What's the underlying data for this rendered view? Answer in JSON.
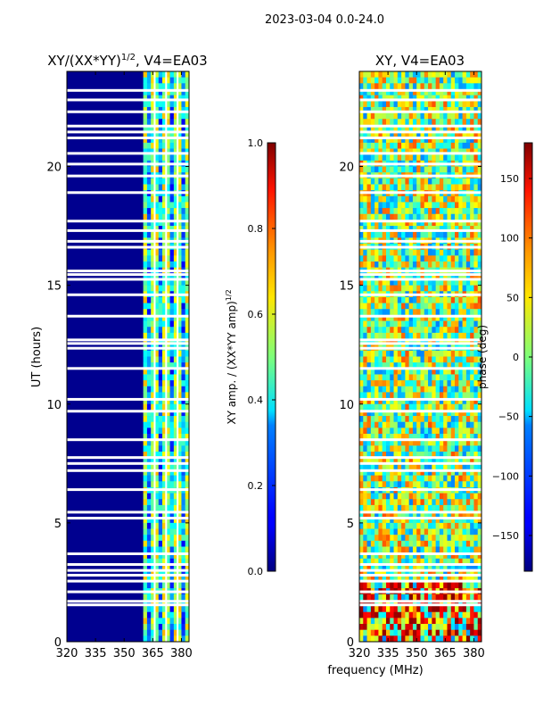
{
  "suptitle": "2023-03-04 0.0-24.0",
  "shared_xlabel": "frequency (MHz)",
  "chart_data": [
    {
      "type": "heatmap",
      "title_main": "XY/(XX*YY)",
      "title_exp": "1/2",
      "title_suffix": ", V4=EA03",
      "ylabel": "UT (hours)",
      "xlim": [
        320,
        384
      ],
      "ylim": [
        0,
        24
      ],
      "xticks": [
        320,
        335,
        350,
        365,
        380
      ],
      "yticks": [
        0,
        5,
        10,
        15,
        20
      ],
      "colorbar": {
        "label_main": "XY amp. / (XX*YY amp)",
        "label_exp": "1/2",
        "range": [
          0.0,
          1.0
        ],
        "ticks": [
          "0.0",
          "0.2",
          "0.4",
          "0.6",
          "0.8",
          "1.0"
        ],
        "tick_values": [
          0.0,
          0.2,
          0.4,
          0.6,
          0.8,
          1.0
        ],
        "colormap": "jet"
      }
    },
    {
      "type": "heatmap",
      "title_main": "XY, V4=EA03",
      "ylabel": "",
      "xlim": [
        320,
        384
      ],
      "ylim": [
        0,
        24
      ],
      "xticks": [
        320,
        335,
        350,
        365,
        380
      ],
      "yticks": [
        0,
        5,
        10,
        15,
        20
      ],
      "colorbar": {
        "label_main": "phase (deg)",
        "range": [
          -180,
          180
        ],
        "ticks": [
          "−150",
          "−100",
          "−50",
          "0",
          "50",
          "100",
          "150"
        ],
        "tick_values": [
          -150,
          -100,
          -50,
          0,
          50,
          100,
          150
        ],
        "colormap": "jet"
      }
    }
  ],
  "flagged_hours": [
    1.55,
    1.7,
    2.1,
    2.55,
    2.8,
    3.0,
    3.25,
    3.7,
    5.2,
    5.45,
    6.4,
    7.2,
    7.5,
    7.75,
    8.5,
    9.7,
    10.2,
    11.5,
    12.35,
    12.55,
    12.7,
    13.7,
    14.6,
    15.25,
    15.45,
    15.6,
    16.6,
    16.85,
    17.3,
    17.7,
    18.9,
    19.6,
    20.1,
    20.55,
    21.2,
    21.45,
    21.7,
    22.3,
    22.8,
    23.2
  ]
}
